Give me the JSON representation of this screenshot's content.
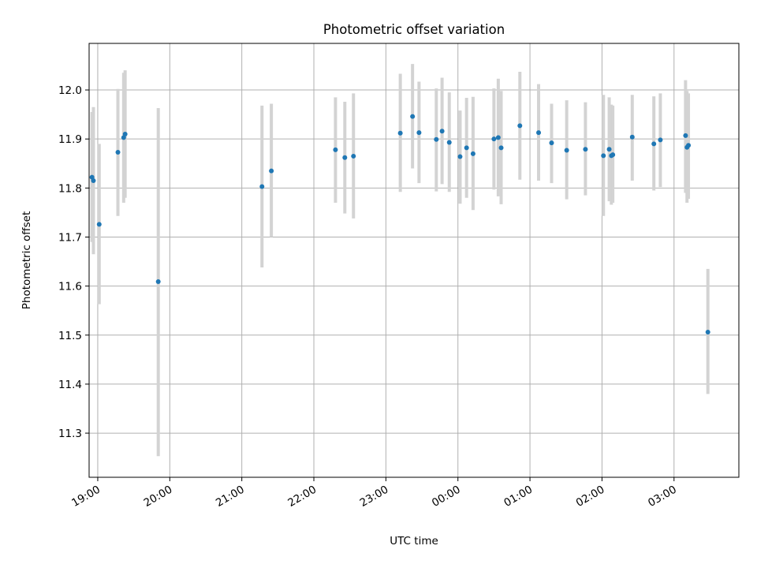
{
  "chart_data": {
    "type": "scatter",
    "title": "Photometric offset variation",
    "xlabel": "UTC time",
    "ylabel": "Photometric offset",
    "x_unit": "hours",
    "xlim": [
      18.88,
      27.9
    ],
    "ylim": [
      11.21,
      12.095
    ],
    "x_ticks": [
      {
        "value": 19,
        "label": "19:00"
      },
      {
        "value": 20,
        "label": "20:00"
      },
      {
        "value": 21,
        "label": "21:00"
      },
      {
        "value": 22,
        "label": "22:00"
      },
      {
        "value": 23,
        "label": "23:00"
      },
      {
        "value": 24,
        "label": "00:00"
      },
      {
        "value": 25,
        "label": "01:00"
      },
      {
        "value": 26,
        "label": "02:00"
      },
      {
        "value": 27,
        "label": "03:00"
      }
    ],
    "y_ticks": [
      {
        "value": 11.3,
        "label": "11.3"
      },
      {
        "value": 11.4,
        "label": "11.4"
      },
      {
        "value": 11.5,
        "label": "11.5"
      },
      {
        "value": 11.6,
        "label": "11.6"
      },
      {
        "value": 11.7,
        "label": "11.7"
      },
      {
        "value": 11.8,
        "label": "11.8"
      },
      {
        "value": 11.9,
        "label": "11.9"
      },
      {
        "value": 12.0,
        "label": "12.0"
      }
    ],
    "grid": true,
    "colors": {
      "point": "#1f77b4",
      "errorbar": "#d3d3d3",
      "grid": "#b0b0b0"
    },
    "points": [
      {
        "x": 18.92,
        "y": 11.822,
        "lo": 11.69,
        "hi": 11.955
      },
      {
        "x": 18.94,
        "y": 11.815,
        "lo": 11.665,
        "hi": 11.965
      },
      {
        "x": 19.02,
        "y": 11.726,
        "lo": 11.563,
        "hi": 11.89
      },
      {
        "x": 19.28,
        "y": 11.873,
        "lo": 11.743,
        "hi": 12.002
      },
      {
        "x": 19.36,
        "y": 11.903,
        "lo": 11.77,
        "hi": 12.035
      },
      {
        "x": 19.38,
        "y": 11.91,
        "lo": 11.78,
        "hi": 12.04
      },
      {
        "x": 19.84,
        "y": 11.609,
        "lo": 11.253,
        "hi": 11.963
      },
      {
        "x": 21.28,
        "y": 11.803,
        "lo": 11.638,
        "hi": 11.968
      },
      {
        "x": 21.41,
        "y": 11.835,
        "lo": 11.7,
        "hi": 11.972
      },
      {
        "x": 22.3,
        "y": 11.878,
        "lo": 11.77,
        "hi": 11.985
      },
      {
        "x": 22.43,
        "y": 11.862,
        "lo": 11.748,
        "hi": 11.976
      },
      {
        "x": 22.55,
        "y": 11.865,
        "lo": 11.738,
        "hi": 11.993
      },
      {
        "x": 23.2,
        "y": 11.912,
        "lo": 11.792,
        "hi": 12.033
      },
      {
        "x": 23.37,
        "y": 11.946,
        "lo": 11.84,
        "hi": 12.053
      },
      {
        "x": 23.46,
        "y": 11.913,
        "lo": 11.81,
        "hi": 12.017
      },
      {
        "x": 23.7,
        "y": 11.899,
        "lo": 11.793,
        "hi": 12.003
      },
      {
        "x": 23.78,
        "y": 11.916,
        "lo": 11.808,
        "hi": 12.025
      },
      {
        "x": 23.88,
        "y": 11.893,
        "lo": 11.792,
        "hi": 11.995
      },
      {
        "x": 24.03,
        "y": 11.864,
        "lo": 11.768,
        "hi": 11.958
      },
      {
        "x": 24.12,
        "y": 11.882,
        "lo": 11.78,
        "hi": 11.984
      },
      {
        "x": 24.21,
        "y": 11.87,
        "lo": 11.755,
        "hi": 11.986
      },
      {
        "x": 24.5,
        "y": 11.9,
        "lo": 11.797,
        "hi": 12.003
      },
      {
        "x": 24.56,
        "y": 11.903,
        "lo": 11.783,
        "hi": 12.023
      },
      {
        "x": 24.6,
        "y": 11.882,
        "lo": 11.767,
        "hi": 11.998
      },
      {
        "x": 24.86,
        "y": 11.927,
        "lo": 11.817,
        "hi": 12.037
      },
      {
        "x": 25.12,
        "y": 11.913,
        "lo": 11.815,
        "hi": 12.012
      },
      {
        "x": 25.3,
        "y": 11.892,
        "lo": 11.81,
        "hi": 11.972
      },
      {
        "x": 25.51,
        "y": 11.877,
        "lo": 11.777,
        "hi": 11.979
      },
      {
        "x": 25.77,
        "y": 11.879,
        "lo": 11.785,
        "hi": 11.975
      },
      {
        "x": 26.02,
        "y": 11.866,
        "lo": 11.743,
        "hi": 11.99
      },
      {
        "x": 26.1,
        "y": 11.879,
        "lo": 11.773,
        "hi": 11.985
      },
      {
        "x": 26.13,
        "y": 11.866,
        "lo": 11.766,
        "hi": 11.97
      },
      {
        "x": 26.15,
        "y": 11.868,
        "lo": 11.77,
        "hi": 11.968
      },
      {
        "x": 26.42,
        "y": 11.904,
        "lo": 11.815,
        "hi": 11.99
      },
      {
        "x": 26.72,
        "y": 11.89,
        "lo": 11.795,
        "hi": 11.987
      },
      {
        "x": 26.81,
        "y": 11.898,
        "lo": 11.802,
        "hi": 11.993
      },
      {
        "x": 27.16,
        "y": 11.907,
        "lo": 11.79,
        "hi": 12.02
      },
      {
        "x": 27.18,
        "y": 11.883,
        "lo": 11.77,
        "hi": 11.998
      },
      {
        "x": 27.2,
        "y": 11.887,
        "lo": 11.778,
        "hi": 11.993
      },
      {
        "x": 27.47,
        "y": 11.506,
        "lo": 11.38,
        "hi": 11.635
      }
    ]
  }
}
